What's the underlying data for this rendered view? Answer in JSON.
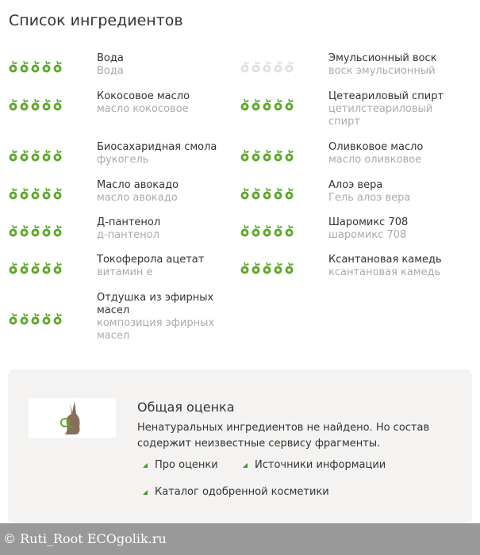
{
  "title": "Список ингредиентов",
  "colors": {
    "good": "#5ea82a",
    "unknown": "#e0e0e0",
    "link_marker": "#3a9a1e"
  },
  "ingredients_left": [
    {
      "name": "Вода",
      "alt": "Вода",
      "rating": 5
    },
    {
      "name": "Кокосовое масло",
      "alt": "масло кокосовое",
      "rating": 5
    },
    {
      "name": "Биосахаридная смола",
      "alt": "фукогель",
      "rating": 5
    },
    {
      "name": "Масло авокадо",
      "alt": "масло авокадо",
      "rating": 5
    },
    {
      "name": "Д-пантенол",
      "alt": "д-пантенол",
      "rating": 5
    },
    {
      "name": "Токоферола ацетат",
      "alt": "витамин е",
      "rating": 5
    },
    {
      "name": "Отдушка из эфирных масел",
      "alt": "композиция эфирных масел",
      "rating": 5
    }
  ],
  "ingredients_right": [
    {
      "name": "Эмульсионный воск",
      "alt": "воск эмульсионный",
      "rating": 0
    },
    {
      "name": "Цетеариловый спирт",
      "alt": "цетилстеариловый спирт",
      "rating": 5
    },
    {
      "name": "Оливковое масло",
      "alt": "масло оливковое",
      "rating": 5
    },
    {
      "name": "Алоэ вера",
      "alt": "Гель алоэ вера",
      "rating": 5
    },
    {
      "name": "Шаромикс 708",
      "alt": "шаромикс 708",
      "rating": 5
    },
    {
      "name": "Ксантановая камедь",
      "alt": "ксантановая камедь",
      "rating": 5
    }
  ],
  "summary": {
    "title": "Общая оценка",
    "text": "Ненатуральных ингредиентов не найдено. Но состав содержит неизвестные сервису фрагменты.",
    "links": [
      "Про оценки",
      "Источники информации",
      "Каталог одобренной косметики"
    ]
  },
  "footer": "© Ruti_Root  ECOgolik.ru"
}
